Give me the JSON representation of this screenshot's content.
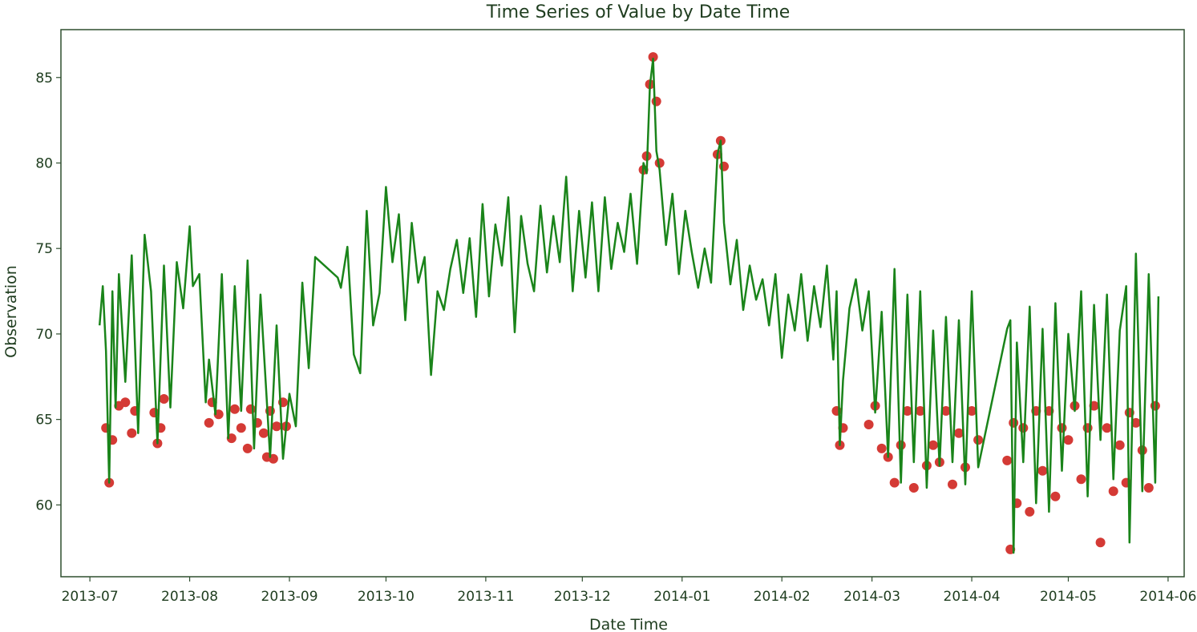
{
  "chart_data": {
    "type": "line",
    "title": "Time Series of  Value by  Date   Time",
    "xlabel": "Date Time",
    "ylabel": "Observation",
    "x_scale": "date",
    "xlim": [
      "2013-06-22",
      "2014-06-06"
    ],
    "ylim": [
      55.8,
      87.8
    ],
    "grid": false,
    "x_ticks": [
      "2013-07",
      "2013-08",
      "2013-09",
      "2013-10",
      "2013-11",
      "2013-12",
      "2014-01",
      "2014-02",
      "2014-03",
      "2014-04",
      "2014-05",
      "2014-06"
    ],
    "y_ticks": [
      60,
      65,
      70,
      75,
      80,
      85
    ],
    "colors": {
      "line": "#1a841a",
      "anomaly": "#d43a35",
      "axes": "#2f4f2f",
      "text": "#1f3d1f"
    },
    "series": [
      {
        "role": "line",
        "x": [
          "2013-07-04",
          "2013-07-05",
          "2013-07-06",
          "2013-07-07",
          "2013-07-08",
          "2013-07-09",
          "2013-07-10",
          "2013-07-12",
          "2013-07-14",
          "2013-07-16",
          "2013-07-18",
          "2013-07-20",
          "2013-07-22",
          "2013-07-24",
          "2013-07-26",
          "2013-07-28",
          "2013-07-30",
          "2013-08-01",
          "2013-08-02",
          "2013-08-04",
          "2013-08-06",
          "2013-08-07",
          "2013-08-09",
          "2013-08-11",
          "2013-08-13",
          "2013-08-15",
          "2013-08-17",
          "2013-08-19",
          "2013-08-21",
          "2013-08-23",
          "2013-08-25",
          "2013-08-26",
          "2013-08-28",
          "2013-08-30",
          "2013-09-01",
          "2013-09-03",
          "2013-09-05",
          "2013-09-07",
          "2013-09-09",
          "2013-09-16",
          "2013-09-17",
          "2013-09-19",
          "2013-09-21",
          "2013-09-23",
          "2013-09-25",
          "2013-09-27",
          "2013-09-29",
          "2013-10-01",
          "2013-10-03",
          "2013-10-05",
          "2013-10-07",
          "2013-10-09",
          "2013-10-11",
          "2013-10-13",
          "2013-10-15",
          "2013-10-17",
          "2013-10-19",
          "2013-10-21",
          "2013-10-23",
          "2013-10-25",
          "2013-10-27",
          "2013-10-29",
          "2013-10-31",
          "2013-11-02",
          "2013-11-04",
          "2013-11-06",
          "2013-11-08",
          "2013-11-10",
          "2013-11-12",
          "2013-11-14",
          "2013-11-16",
          "2013-11-18",
          "2013-11-20",
          "2013-11-22",
          "2013-11-24",
          "2013-11-26",
          "2013-11-28",
          "2013-11-30",
          "2013-12-02",
          "2013-12-04",
          "2013-12-06",
          "2013-12-08",
          "2013-12-10",
          "2013-12-12",
          "2013-12-14",
          "2013-12-16",
          "2013-12-18",
          "2013-12-20",
          "2013-12-21",
          "2013-12-22",
          "2013-12-23",
          "2013-12-24",
          "2013-12-25",
          "2013-12-27",
          "2013-12-29",
          "2013-12-31",
          "2014-01-02",
          "2014-01-04",
          "2014-01-06",
          "2014-01-08",
          "2014-01-10",
          "2014-01-12",
          "2014-01-13",
          "2014-01-14",
          "2014-01-16",
          "2014-01-18",
          "2014-01-20",
          "2014-01-22",
          "2014-01-24",
          "2014-01-26",
          "2014-01-28",
          "2014-01-30",
          "2014-02-01",
          "2014-02-03",
          "2014-02-05",
          "2014-02-07",
          "2014-02-09",
          "2014-02-11",
          "2014-02-13",
          "2014-02-15",
          "2014-02-17",
          "2014-02-18",
          "2014-02-19",
          "2014-02-20",
          "2014-02-22",
          "2014-02-24",
          "2014-02-26",
          "2014-02-28",
          "2014-03-02",
          "2014-03-04",
          "2014-03-06",
          "2014-03-08",
          "2014-03-10",
          "2014-03-12",
          "2014-03-14",
          "2014-03-16",
          "2014-03-18",
          "2014-03-20",
          "2014-03-22",
          "2014-03-24",
          "2014-03-26",
          "2014-03-28",
          "2014-03-30",
          "2014-04-01",
          "2014-04-03",
          "2014-04-12",
          "2014-04-13",
          "2014-04-14",
          "2014-04-15",
          "2014-04-17",
          "2014-04-19",
          "2014-04-21",
          "2014-04-23",
          "2014-04-25",
          "2014-04-27",
          "2014-04-29",
          "2014-05-01",
          "2014-05-03",
          "2014-05-05",
          "2014-05-07",
          "2014-05-09",
          "2014-05-11",
          "2014-05-13",
          "2014-05-15",
          "2014-05-17",
          "2014-05-19",
          "2014-05-20",
          "2014-05-22",
          "2014-05-24",
          "2014-05-26",
          "2014-05-28",
          "2014-05-29"
        ],
        "y": [
          70.5,
          72.8,
          69,
          61.3,
          72.5,
          65.7,
          73.5,
          67.2,
          74.6,
          64.2,
          75.8,
          72.5,
          63.6,
          74,
          65.7,
          74.2,
          71.5,
          76.3,
          72.8,
          73.5,
          66,
          68.5,
          65.3,
          73.5,
          63.9,
          72.8,
          65.5,
          74.3,
          63.3,
          72.3,
          66,
          62.8,
          70.5,
          62.7,
          66.5,
          64.6,
          73,
          68,
          74.5,
          73.3,
          72.7,
          75.1,
          68.8,
          67.7,
          77.2,
          70.5,
          72.4,
          78.6,
          74.2,
          77,
          70.8,
          76.5,
          73,
          74.5,
          67.6,
          72.5,
          71.4,
          73.8,
          75.5,
          72.4,
          75.6,
          71,
          77.6,
          72.2,
          76.4,
          74,
          78,
          70.1,
          76.9,
          74.1,
          72.5,
          77.5,
          73.6,
          76.9,
          74.2,
          79.2,
          72.5,
          77.2,
          73.3,
          77.7,
          72.5,
          78,
          73.8,
          76.5,
          74.8,
          78.2,
          74.1,
          80,
          79.4,
          84.5,
          86.1,
          80.7,
          79.6,
          75.2,
          78.2,
          73.5,
          77.2,
          74.8,
          72.7,
          75,
          73,
          80.5,
          81.3,
          76.5,
          72.9,
          75.5,
          71.4,
          74,
          72,
          73.2,
          70.5,
          73.5,
          68.6,
          72.3,
          70.2,
          73.5,
          69.6,
          72.8,
          70.4,
          74,
          68.5,
          72.5,
          63.5,
          67.3,
          71.5,
          73.2,
          70.2,
          72.5,
          65.4,
          71.3,
          62.8,
          73.8,
          61.3,
          72.3,
          62.5,
          72.5,
          61,
          70.2,
          62.3,
          71,
          62.5,
          70.8,
          61.2,
          72.5,
          62.2,
          70.3,
          70.8,
          57.2,
          69.5,
          62.5,
          71.6,
          60.1,
          70.3,
          59.6,
          71.8,
          62,
          70,
          65.5,
          72.5,
          60.5,
          71.7,
          63.8,
          72.3,
          61.5,
          70.2,
          72.8,
          57.8,
          74.7,
          60.8,
          73.5,
          61.3,
          72.2
        ]
      },
      {
        "role": "anomaly",
        "x": [
          "2013-07-06",
          "2013-07-07",
          "2013-07-08",
          "2013-07-10",
          "2013-07-12",
          "2013-07-14",
          "2013-07-15",
          "2013-07-21",
          "2013-07-22",
          "2013-07-23",
          "2013-07-24",
          "2013-08-07",
          "2013-08-08",
          "2013-08-10",
          "2013-08-14",
          "2013-08-15",
          "2013-08-17",
          "2013-08-19",
          "2013-08-20",
          "2013-08-22",
          "2013-08-24",
          "2013-08-25",
          "2013-08-26",
          "2013-08-27",
          "2013-08-28",
          "2013-08-30",
          "2013-08-31",
          "2013-12-20",
          "2013-12-21",
          "2013-12-22",
          "2013-12-23",
          "2013-12-24",
          "2013-12-25",
          "2014-01-12",
          "2014-01-13",
          "2014-01-14",
          "2014-02-18",
          "2014-02-19",
          "2014-02-20",
          "2014-02-28",
          "2014-03-02",
          "2014-03-04",
          "2014-03-06",
          "2014-03-08",
          "2014-03-10",
          "2014-03-12",
          "2014-03-14",
          "2014-03-16",
          "2014-03-18",
          "2014-03-20",
          "2014-03-22",
          "2014-03-24",
          "2014-03-26",
          "2014-03-28",
          "2014-03-30",
          "2014-04-01",
          "2014-04-03",
          "2014-04-12",
          "2014-04-13",
          "2014-04-14",
          "2014-04-15",
          "2014-04-17",
          "2014-04-19",
          "2014-04-21",
          "2014-04-23",
          "2014-04-25",
          "2014-04-27",
          "2014-04-29",
          "2014-05-01",
          "2014-05-03",
          "2014-05-05",
          "2014-05-07",
          "2014-05-09",
          "2014-05-11",
          "2014-05-13",
          "2014-05-15",
          "2014-05-17",
          "2014-05-19",
          "2014-05-20",
          "2014-05-22",
          "2014-05-24",
          "2014-05-26",
          "2014-05-28"
        ],
        "y": [
          64.5,
          61.3,
          63.8,
          65.8,
          66,
          64.2,
          65.5,
          65.4,
          63.6,
          64.5,
          66.2,
          64.8,
          66,
          65.3,
          63.9,
          65.6,
          64.5,
          63.3,
          65.6,
          64.8,
          64.2,
          62.8,
          65.5,
          62.7,
          64.6,
          66,
          64.6,
          79.6,
          80.4,
          84.6,
          86.2,
          83.6,
          80,
          80.5,
          81.3,
          79.8,
          65.5,
          63.5,
          64.5,
          64.7,
          65.8,
          63.3,
          62.8,
          61.3,
          63.5,
          65.5,
          61,
          65.5,
          62.3,
          63.5,
          62.5,
          65.5,
          61.2,
          64.2,
          62.2,
          65.5,
          63.8,
          62.6,
          57.4,
          64.8,
          60.1,
          64.5,
          59.6,
          65.5,
          62,
          65.5,
          60.5,
          64.5,
          63.8,
          65.8,
          61.5,
          64.5,
          65.8,
          57.8,
          64.5,
          60.8,
          63.5,
          61.3,
          65.4,
          64.8,
          63.2,
          61,
          65.8
        ]
      }
    ]
  }
}
